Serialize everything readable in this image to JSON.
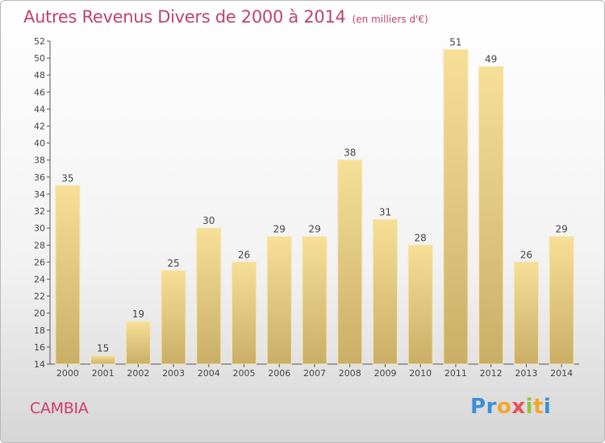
{
  "header": {
    "title": "Autres Revenus Divers de 2000 à 2014",
    "subtitle": "(en milliers d'€)"
  },
  "footer": {
    "location": "CAMBIA",
    "logo": [
      "P",
      "r",
      "o",
      "x",
      "i",
      "t",
      "i"
    ],
    "logo_colors": [
      "#3a8fd6",
      "#3a8fd6",
      "#f2a62b",
      "#e8505b",
      "#8cc63f",
      "#f2a62b",
      "#3a8fd6"
    ]
  },
  "chart_data": {
    "type": "bar",
    "title": "Autres Revenus Divers de 2000 à 2014",
    "subtitle": "(en milliers d'€)",
    "categories": [
      "2000",
      "2001",
      "2002",
      "2003",
      "2004",
      "2005",
      "2006",
      "2007",
      "2008",
      "2009",
      "2010",
      "2011",
      "2012",
      "2013",
      "2014"
    ],
    "values": [
      35,
      15,
      19,
      25,
      30,
      26,
      29,
      29,
      38,
      31,
      28,
      51,
      49,
      26,
      29
    ],
    "ylim": [
      14,
      52
    ],
    "yticks": [
      14,
      16,
      18,
      20,
      22,
      24,
      26,
      28,
      30,
      32,
      34,
      36,
      38,
      40,
      42,
      44,
      46,
      48,
      50,
      52
    ],
    "grid": false,
    "bar_color": "#e3c77c",
    "xlabel": "",
    "ylabel": ""
  }
}
